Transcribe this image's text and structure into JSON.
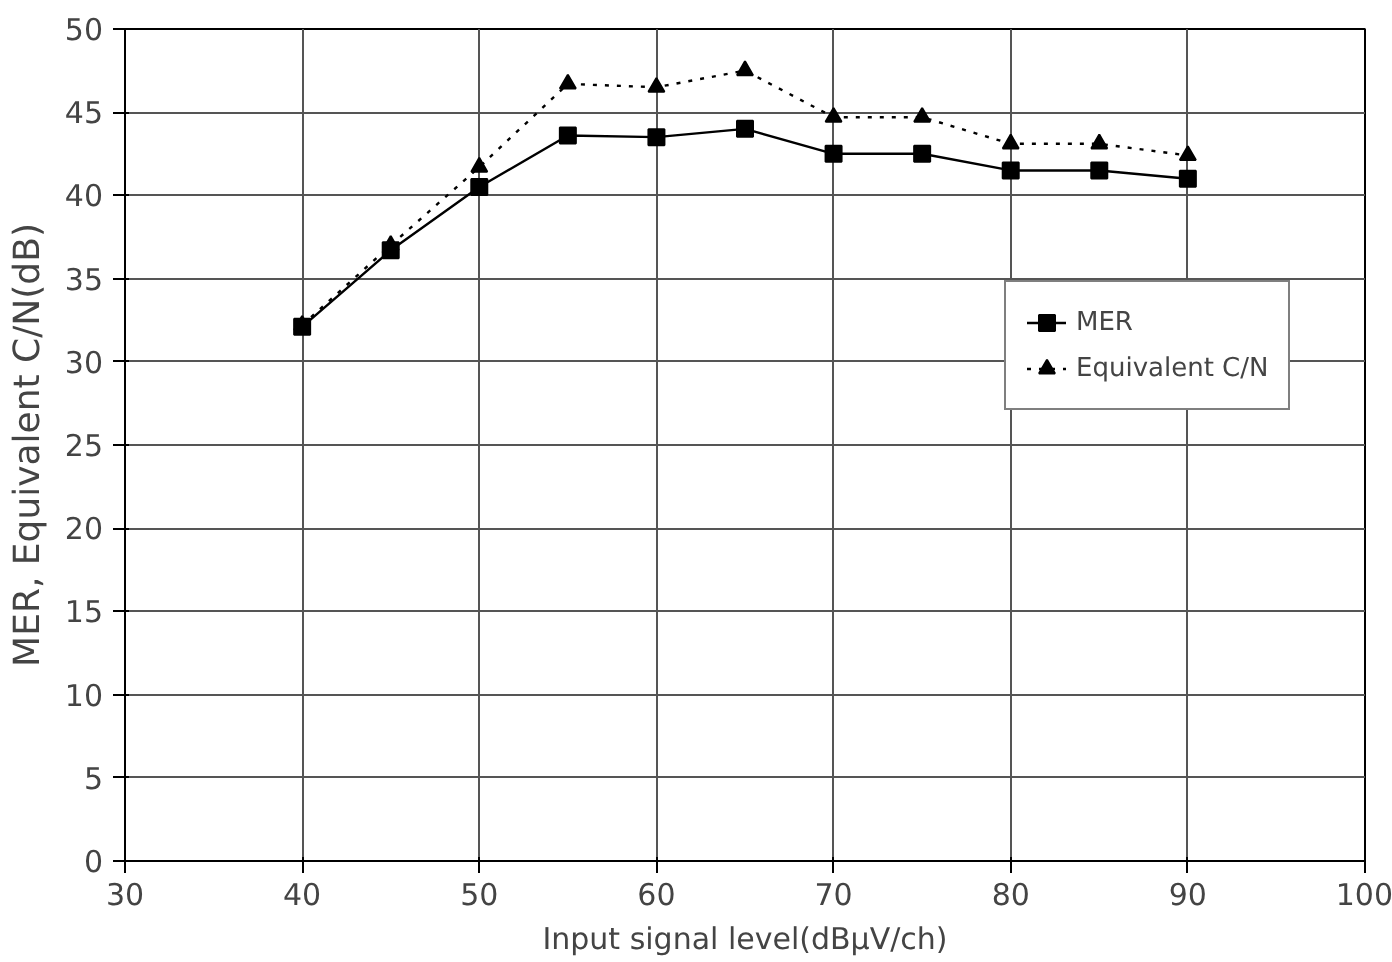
{
  "chart_data": {
    "type": "line",
    "xlabel": "Input signal level(dBμV/ch)",
    "ylabel": "MER, Equivalent C/N(dB)",
    "x": [
      40,
      45,
      50,
      55,
      60,
      65,
      70,
      75,
      80,
      85,
      90
    ],
    "series": [
      {
        "name": "MER",
        "color": "#000000",
        "marker": "square",
        "line_style": "solid",
        "values": [
          32.1,
          36.7,
          40.5,
          43.6,
          43.5,
          44.0,
          42.5,
          42.5,
          41.5,
          41.5,
          41.0
        ]
      },
      {
        "name": "Equivalent C/N",
        "color": "#000000",
        "marker": "triangle",
        "line_style": "dotted",
        "values": [
          32.2,
          37.0,
          41.7,
          46.7,
          46.5,
          47.5,
          44.7,
          44.7,
          43.1,
          43.1,
          42.4
        ]
      }
    ],
    "xlim": [
      30,
      100
    ],
    "xticks": [
      30,
      40,
      50,
      60,
      70,
      80,
      90,
      100
    ],
    "ylim": [
      0,
      50
    ],
    "yticks": [
      0,
      5,
      10,
      15,
      20,
      25,
      30,
      35,
      40,
      45,
      50
    ],
    "grid": true,
    "legend": "right"
  }
}
